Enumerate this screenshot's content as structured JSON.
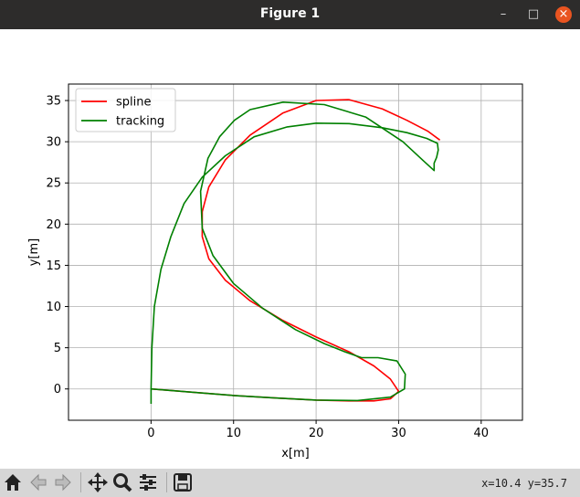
{
  "window": {
    "title": "Figure 1"
  },
  "toolbar": {
    "coords": "x=10.4 y=35.7"
  },
  "chart_data": {
    "type": "line",
    "title": "",
    "xlabel": "x[m]",
    "ylabel": "y[m]",
    "xlim": [
      -10,
      45
    ],
    "ylim": [
      -3.8,
      37
    ],
    "xticks": [
      0,
      10,
      20,
      30,
      40
    ],
    "yticks": [
      0,
      5,
      10,
      15,
      20,
      25,
      30,
      35
    ],
    "grid": true,
    "legend": "upper-left",
    "series": [
      {
        "name": "spline",
        "color": "#ff0000",
        "x": [
          0,
          5,
          10,
          15,
          20,
          24,
          27,
          29,
          30,
          29,
          27,
          24,
          20,
          16,
          12,
          9,
          7,
          6.2,
          6.2,
          7,
          9,
          12,
          16,
          20,
          24,
          28,
          31,
          33.5,
          35
        ],
        "y": [
          0,
          -0.4,
          -0.8,
          -1.1,
          -1.35,
          -1.45,
          -1.45,
          -1.2,
          -0.3,
          1.2,
          2.8,
          4.5,
          6.3,
          8.3,
          10.7,
          13.2,
          15.8,
          18.5,
          21.5,
          24.5,
          27.8,
          30.8,
          33.5,
          35.0,
          35.1,
          34.0,
          32.6,
          31.3,
          30.2
        ]
      },
      {
        "name": "tracking",
        "color": "#008000",
        "x": [
          0,
          0,
          0.1,
          0.4,
          1.2,
          2.4,
          4,
          6.2,
          9,
          12.5,
          16.5,
          20,
          24,
          28,
          31,
          33.4,
          34.7,
          34.8,
          34.6,
          34.3,
          34.3,
          33.2,
          30.5,
          26,
          21,
          16,
          12,
          10.1,
          8.3,
          6.9,
          6.0,
          6.2,
          7.5,
          10,
          13.5,
          17.5,
          21,
          23.5,
          25.5,
          27.5,
          29.8,
          30.8,
          30.7,
          29,
          25,
          20,
          15,
          10,
          5,
          0,
          0
        ],
        "y": [
          -1.8,
          0,
          5,
          10,
          14.5,
          18.5,
          22.5,
          25.7,
          28.3,
          30.6,
          31.8,
          32.25,
          32.2,
          31.7,
          31.1,
          30.4,
          29.8,
          29.0,
          28.1,
          27.4,
          26.5,
          27.5,
          30.0,
          33.0,
          34.5,
          34.8,
          33.9,
          32.6,
          30.6,
          28,
          24,
          19.5,
          16.2,
          12.8,
          9.8,
          7.2,
          5.5,
          4.5,
          3.8,
          3.8,
          3.4,
          1.8,
          0,
          -1.0,
          -1.4,
          -1.35,
          -1.1,
          -0.8,
          -0.4,
          0,
          0
        ]
      }
    ]
  }
}
